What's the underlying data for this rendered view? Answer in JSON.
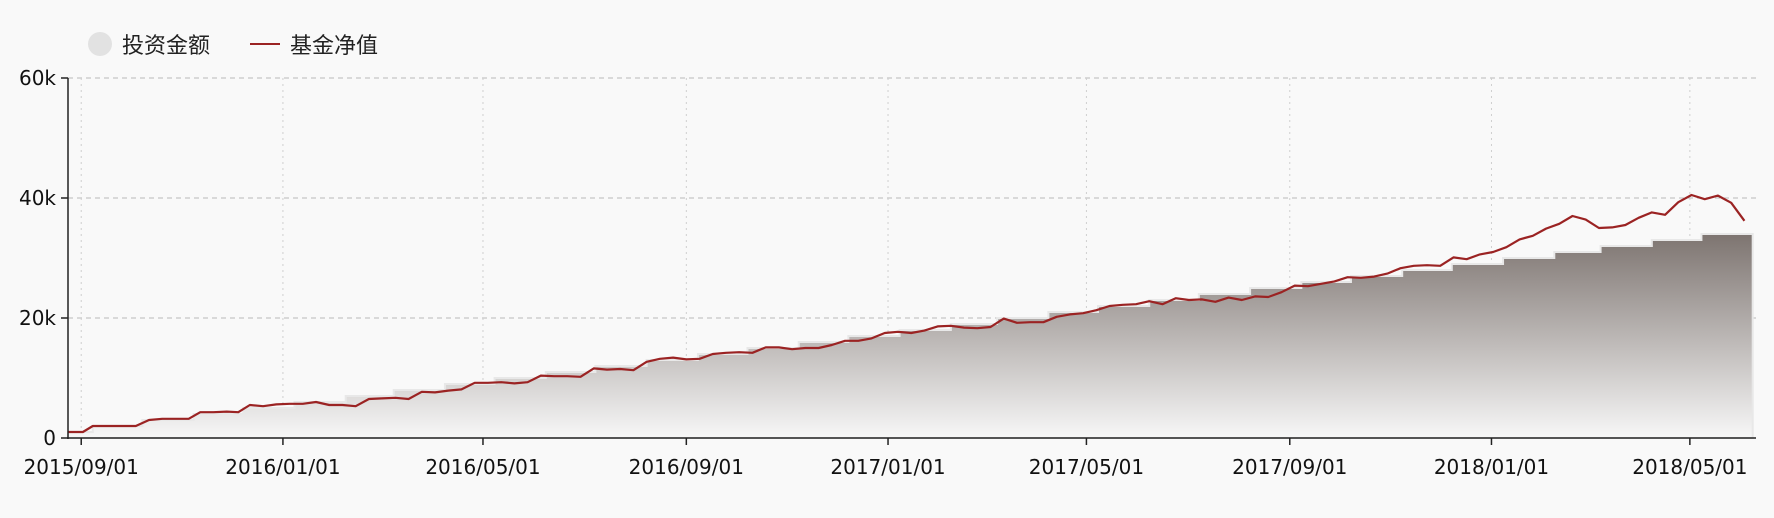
{
  "chart_data": {
    "type": "area",
    "legend": {
      "placement": "top-left",
      "items": [
        {
          "name": "投资金额",
          "kind": "area",
          "color": "#e2e2e2"
        },
        {
          "name": "基金净值",
          "kind": "line",
          "color": "#9b2323"
        }
      ]
    },
    "x_ticks": [
      "2015/09/01",
      "2016/01/01",
      "2016/05/01",
      "2016/09/01",
      "2017/01/01",
      "2017/05/01",
      "2017/09/01",
      "2018/01/01",
      "2018/05/01"
    ],
    "y_ticks": [
      "0",
      "20k",
      "40k",
      "60k"
    ],
    "ylim": [
      0,
      60000
    ],
    "xlim": [
      "2015/08/24",
      "2018/06/10"
    ],
    "grid": true,
    "series": [
      {
        "name": "投资金额",
        "type": "step-area",
        "colors": [
          "#7d7470",
          "#f7f7f7"
        ],
        "points": [
          [
            "2015/08/24",
            1000
          ],
          [
            "2015/09/08",
            2000
          ],
          [
            "2015/10/08",
            3000
          ],
          [
            "2015/11/08",
            4000
          ],
          [
            "2015/12/08",
            5000
          ],
          [
            "2016/01/08",
            6000
          ],
          [
            "2016/02/08",
            7000
          ],
          [
            "2016/03/08",
            8000
          ],
          [
            "2016/04/08",
            9000
          ],
          [
            "2016/05/08",
            10000
          ],
          [
            "2016/06/08",
            11000
          ],
          [
            "2016/07/08",
            12000
          ],
          [
            "2016/08/08",
            13000
          ],
          [
            "2016/09/08",
            14000
          ],
          [
            "2016/10/08",
            15000
          ],
          [
            "2016/11/08",
            16000
          ],
          [
            "2016/12/08",
            17000
          ],
          [
            "2017/01/08",
            18000
          ],
          [
            "2017/02/08",
            19000
          ],
          [
            "2017/03/08",
            20000
          ],
          [
            "2017/04/08",
            21000
          ],
          [
            "2017/05/08",
            22000
          ],
          [
            "2017/06/08",
            23000
          ],
          [
            "2017/07/08",
            24000
          ],
          [
            "2017/08/08",
            25000
          ],
          [
            "2017/09/08",
            26000
          ],
          [
            "2017/10/08",
            27000
          ],
          [
            "2017/11/08",
            28000
          ],
          [
            "2017/12/08",
            29000
          ],
          [
            "2018/01/08",
            30000
          ],
          [
            "2018/02/08",
            31000
          ],
          [
            "2018/03/08",
            32000
          ],
          [
            "2018/04/08",
            33000
          ],
          [
            "2018/05/08",
            34000
          ],
          [
            "2018/06/08",
            34000
          ]
        ]
      },
      {
        "name": "基金净值",
        "type": "line",
        "color": "#9b2323",
        "points": [
          [
            "2015/08/24",
            1000
          ],
          [
            "2015/09/02",
            1000
          ],
          [
            "2015/09/08",
            2000
          ],
          [
            "2015/09/16",
            2000
          ],
          [
            "2015/09/24",
            2000
          ],
          [
            "2015/10/04",
            2000
          ],
          [
            "2015/10/12",
            3000
          ],
          [
            "2015/10/20",
            3200
          ],
          [
            "2015/10/28",
            3200
          ],
          [
            "2015/11/05",
            3200
          ],
          [
            "2015/11/12",
            4300
          ],
          [
            "2015/11/20",
            4300
          ],
          [
            "2015/11/28",
            4400
          ],
          [
            "2015/12/05",
            4300
          ],
          [
            "2015/12/12",
            5500
          ],
          [
            "2015/12/20",
            5300
          ],
          [
            "2015/12/28",
            5600
          ],
          [
            "2016/01/05",
            5700
          ],
          [
            "2016/01/13",
            5700
          ],
          [
            "2016/01/21",
            6000
          ],
          [
            "2016/01/29",
            5500
          ],
          [
            "2016/02/06",
            5500
          ],
          [
            "2016/02/14",
            5300
          ],
          [
            "2016/02/22",
            6500
          ],
          [
            "2016/03/01",
            6600
          ],
          [
            "2016/03/09",
            6700
          ],
          [
            "2016/03/17",
            6500
          ],
          [
            "2016/03/25",
            7700
          ],
          [
            "2016/04/02",
            7600
          ],
          [
            "2016/04/10",
            7900
          ],
          [
            "2016/04/18",
            8100
          ],
          [
            "2016/04/26",
            9200
          ],
          [
            "2016/05/04",
            9200
          ],
          [
            "2016/05/12",
            9300
          ],
          [
            "2016/05/20",
            9100
          ],
          [
            "2016/05/28",
            9300
          ],
          [
            "2016/06/05",
            10400
          ],
          [
            "2016/06/13",
            10300
          ],
          [
            "2016/06/21",
            10300
          ],
          [
            "2016/06/29",
            10200
          ],
          [
            "2016/07/07",
            11600
          ],
          [
            "2016/07/15",
            11400
          ],
          [
            "2016/07/23",
            11500
          ],
          [
            "2016/07/31",
            11300
          ],
          [
            "2016/08/08",
            12700
          ],
          [
            "2016/08/16",
            13200
          ],
          [
            "2016/08/24",
            13400
          ],
          [
            "2016/09/01",
            13100
          ],
          [
            "2016/09/09",
            13200
          ],
          [
            "2016/09/17",
            14000
          ],
          [
            "2016/09/25",
            14200
          ],
          [
            "2016/10/03",
            14300
          ],
          [
            "2016/10/11",
            14200
          ],
          [
            "2016/10/19",
            15100
          ],
          [
            "2016/10/27",
            15100
          ],
          [
            "2016/11/04",
            14800
          ],
          [
            "2016/11/12",
            15000
          ],
          [
            "2016/11/20",
            15000
          ],
          [
            "2016/11/28",
            15500
          ],
          [
            "2016/12/06",
            16200
          ],
          [
            "2016/12/14",
            16200
          ],
          [
            "2016/12/22",
            16600
          ],
          [
            "2016/12/30",
            17500
          ],
          [
            "2017/01/07",
            17700
          ],
          [
            "2017/01/15",
            17500
          ],
          [
            "2017/01/23",
            17900
          ],
          [
            "2017/01/31",
            18600
          ],
          [
            "2017/02/08",
            18700
          ],
          [
            "2017/02/16",
            18400
          ],
          [
            "2017/02/24",
            18300
          ],
          [
            "2017/03/04",
            18500
          ],
          [
            "2017/03/12",
            19900
          ],
          [
            "2017/03/20",
            19200
          ],
          [
            "2017/03/28",
            19300
          ],
          [
            "2017/04/05",
            19300
          ],
          [
            "2017/04/13",
            20200
          ],
          [
            "2017/04/21",
            20600
          ],
          [
            "2017/04/29",
            20800
          ],
          [
            "2017/05/07",
            21300
          ],
          [
            "2017/05/15",
            22000
          ],
          [
            "2017/05/23",
            22200
          ],
          [
            "2017/05/31",
            22300
          ],
          [
            "2017/06/08",
            22800
          ],
          [
            "2017/06/16",
            22300
          ],
          [
            "2017/06/24",
            23300
          ],
          [
            "2017/07/02",
            23000
          ],
          [
            "2017/07/10",
            23100
          ],
          [
            "2017/07/18",
            22700
          ],
          [
            "2017/07/26",
            23400
          ],
          [
            "2017/08/03",
            23000
          ],
          [
            "2017/08/11",
            23600
          ],
          [
            "2017/08/19",
            23500
          ],
          [
            "2017/08/27",
            24300
          ],
          [
            "2017/09/04",
            25400
          ],
          [
            "2017/09/12",
            25300
          ],
          [
            "2017/09/20",
            25700
          ],
          [
            "2017/09/28",
            26100
          ],
          [
            "2017/10/06",
            26800
          ],
          [
            "2017/10/14",
            26700
          ],
          [
            "2017/10/22",
            26900
          ],
          [
            "2017/10/30",
            27400
          ],
          [
            "2017/11/07",
            28300
          ],
          [
            "2017/11/15",
            28700
          ],
          [
            "2017/11/23",
            28800
          ],
          [
            "2017/12/01",
            28700
          ],
          [
            "2017/12/09",
            30100
          ],
          [
            "2017/12/17",
            29800
          ],
          [
            "2017/12/25",
            30600
          ],
          [
            "2018/01/02",
            31000
          ],
          [
            "2018/01/10",
            31800
          ],
          [
            "2018/01/18",
            33100
          ],
          [
            "2018/01/26",
            33700
          ],
          [
            "2018/02/03",
            34900
          ],
          [
            "2018/02/11",
            35700
          ],
          [
            "2018/02/19",
            37000
          ],
          [
            "2018/02/27",
            36400
          ],
          [
            "2018/03/07",
            35000
          ],
          [
            "2018/03/15",
            35100
          ],
          [
            "2018/03/23",
            35500
          ],
          [
            "2018/03/31",
            36700
          ],
          [
            "2018/04/08",
            37600
          ],
          [
            "2018/04/16",
            37200
          ],
          [
            "2018/04/24",
            39300
          ],
          [
            "2018/05/02",
            40500
          ],
          [
            "2018/05/10",
            39800
          ],
          [
            "2018/05/18",
            40400
          ],
          [
            "2018/05/26",
            39200
          ],
          [
            "2018/06/03",
            36200
          ]
        ]
      }
    ]
  }
}
